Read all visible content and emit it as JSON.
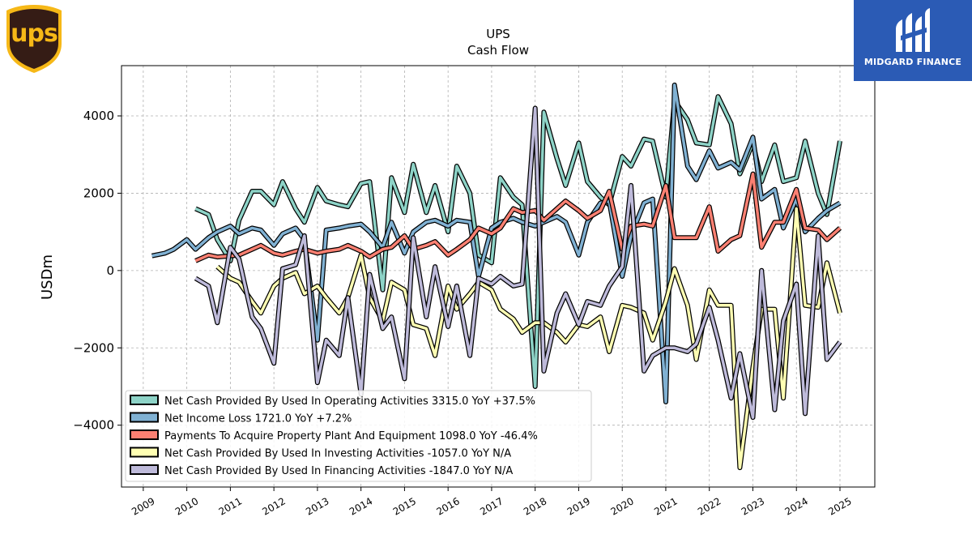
{
  "brand": {
    "logo_text": "ups",
    "partner": "MIDGARD FINANCE"
  },
  "colors": {
    "operating": "#8dd3c7",
    "net_income": "#80b1d3",
    "capex": "#fb8072",
    "investing": "#ffffb3",
    "financing": "#bebada"
  },
  "chart_data": {
    "type": "line",
    "title": "UPS",
    "subtitle": "Cash Flow",
    "ylabel": "USDm",
    "xlabel": "",
    "xlim": [
      2008.5,
      2025.8
    ],
    "ylim": [
      -5600,
      5300
    ],
    "yticks": [
      -4000,
      -2000,
      0,
      2000,
      4000
    ],
    "xticks": [
      "2009",
      "2010",
      "2011",
      "2012",
      "2013",
      "2014",
      "2015",
      "2016",
      "2017",
      "2018",
      "2019",
      "2020",
      "2021",
      "2022",
      "2023",
      "2024",
      "2025"
    ],
    "grid": true,
    "legend_position": "lower-left",
    "series": [
      {
        "key": "operating",
        "name": "Net Cash Provided By Used In Operating Activities  3315.0 YoY +37.5%",
        "x": [
          2010.2,
          2010.5,
          2010.7,
          2011.0,
          2011.2,
          2011.5,
          2011.7,
          2012.0,
          2012.2,
          2012.5,
          2012.7,
          2013.0,
          2013.2,
          2013.5,
          2013.7,
          2014.0,
          2014.2,
          2014.5,
          2014.7,
          2015.0,
          2015.2,
          2015.5,
          2015.7,
          2016.0,
          2016.2,
          2016.5,
          2016.7,
          2017.0,
          2017.2,
          2017.5,
          2017.7,
          2018.0,
          2018.2,
          2018.5,
          2018.7,
          2019.0,
          2019.2,
          2019.5,
          2019.7,
          2020.0,
          2020.2,
          2020.5,
          2020.7,
          2021.0,
          2021.2,
          2021.5,
          2021.7,
          2022.0,
          2022.2,
          2022.5,
          2022.7,
          2023.0,
          2023.2,
          2023.5,
          2023.7,
          2024.0,
          2024.2,
          2024.5,
          2024.7,
          2025.0
        ],
        "y": [
          1600,
          1450,
          800,
          250,
          1300,
          2050,
          2050,
          1700,
          2300,
          1600,
          1250,
          2150,
          1800,
          1700,
          1650,
          2250,
          2300,
          -500,
          2400,
          1500,
          2750,
          1500,
          2200,
          1000,
          2700,
          2000,
          400,
          200,
          2400,
          1900,
          1700,
          -3000,
          4100,
          2900,
          2200,
          3300,
          2300,
          1900,
          1700,
          2950,
          2700,
          3400,
          3350,
          1900,
          4400,
          3900,
          3300,
          3250,
          4500,
          3800,
          2500,
          3300,
          2300,
          3250,
          2300,
          2400,
          3350,
          2000,
          1450,
          3350
        ]
      },
      {
        "key": "net_income",
        "name": "Net Income Loss  1721.0 YoY +7.2%",
        "x": [
          2009.2,
          2009.5,
          2009.7,
          2010.0,
          2010.2,
          2010.5,
          2010.7,
          2011.0,
          2011.2,
          2011.5,
          2011.7,
          2012.0,
          2012.2,
          2012.5,
          2012.7,
          2013.0,
          2013.2,
          2013.5,
          2013.7,
          2014.0,
          2014.2,
          2014.5,
          2014.7,
          2015.0,
          2015.2,
          2015.5,
          2015.7,
          2016.0,
          2016.2,
          2016.5,
          2016.7,
          2017.0,
          2017.2,
          2017.5,
          2017.7,
          2018.0,
          2018.2,
          2018.5,
          2018.7,
          2019.0,
          2019.2,
          2019.5,
          2019.7,
          2020.0,
          2020.2,
          2020.5,
          2020.7,
          2021.0,
          2021.2,
          2021.5,
          2021.7,
          2022.0,
          2022.2,
          2022.5,
          2022.7,
          2023.0,
          2023.2,
          2023.5,
          2023.7,
          2024.0,
          2024.2,
          2024.5,
          2024.7,
          2025.0
        ],
        "y": [
          380,
          450,
          550,
          800,
          550,
          850,
          1000,
          1150,
          950,
          1100,
          1050,
          650,
          950,
          1100,
          800,
          -1800,
          1050,
          1100,
          1150,
          1200,
          1000,
          600,
          1250,
          450,
          1000,
          1250,
          1300,
          1150,
          1300,
          1250,
          -150,
          1100,
          1250,
          1350,
          1250,
          1150,
          1250,
          1400,
          1250,
          400,
          1250,
          1750,
          1800,
          -150,
          900,
          1750,
          1850,
          -3400,
          4800,
          2700,
          2350,
          3100,
          2650,
          2800,
          2600,
          3450,
          1850,
          2100,
          1100,
          1850,
          1000,
          1350,
          1550,
          1750
        ]
      },
      {
        "key": "capex",
        "name": "Payments To Acquire Property Plant And Equipment  1098.0 YoY -46.4%",
        "x": [
          2010.2,
          2010.5,
          2010.7,
          2011.0,
          2011.2,
          2011.5,
          2011.7,
          2012.0,
          2012.2,
          2012.5,
          2012.7,
          2013.0,
          2013.2,
          2013.5,
          2013.7,
          2014.0,
          2014.2,
          2014.5,
          2014.7,
          2015.0,
          2015.2,
          2015.5,
          2015.7,
          2016.0,
          2016.2,
          2016.5,
          2016.7,
          2017.0,
          2017.2,
          2017.5,
          2017.7,
          2018.0,
          2018.2,
          2018.5,
          2018.7,
          2019.0,
          2019.2,
          2019.5,
          2019.7,
          2020.0,
          2020.2,
          2020.5,
          2020.7,
          2021.0,
          2021.2,
          2021.5,
          2021.7,
          2022.0,
          2022.2,
          2022.5,
          2022.7,
          2023.0,
          2023.2,
          2023.5,
          2023.7,
          2024.0,
          2024.2,
          2024.5,
          2024.7,
          2025.0
        ],
        "y": [
          250,
          400,
          350,
          380,
          400,
          550,
          650,
          450,
          400,
          500,
          550,
          450,
          500,
          550,
          650,
          500,
          350,
          550,
          600,
          900,
          550,
          650,
          750,
          400,
          550,
          800,
          1100,
          950,
          1100,
          1600,
          1500,
          1550,
          1300,
          1600,
          1800,
          1550,
          1350,
          1550,
          2050,
          550,
          1150,
          1200,
          1150,
          2200,
          850,
          850,
          850,
          1650,
          500,
          800,
          900,
          2500,
          600,
          1250,
          1250,
          2100,
          1100,
          1050,
          800,
          1100
        ]
      },
      {
        "key": "investing",
        "name": "Net Cash Provided By Used In Investing Activities  -1057.0 YoY N/A",
        "x": [
          2010.7,
          2011.0,
          2011.2,
          2011.5,
          2011.7,
          2012.0,
          2012.2,
          2012.5,
          2012.7,
          2013.0,
          2013.2,
          2013.5,
          2013.7,
          2014.0,
          2014.2,
          2014.5,
          2014.7,
          2015.0,
          2015.2,
          2015.5,
          2015.7,
          2016.0,
          2016.2,
          2016.5,
          2016.7,
          2017.0,
          2017.2,
          2017.5,
          2017.7,
          2018.0,
          2018.2,
          2018.5,
          2018.7,
          2019.0,
          2019.2,
          2019.5,
          2019.7,
          2020.0,
          2020.2,
          2020.5,
          2020.7,
          2021.0,
          2021.2,
          2021.5,
          2021.7,
          2022.0,
          2022.2,
          2022.5,
          2022.7,
          2023.0,
          2023.2,
          2023.5,
          2023.7,
          2024.0,
          2024.2,
          2024.5,
          2024.7,
          2025.0
        ],
        "y": [
          100,
          -200,
          -300,
          -800,
          -1100,
          -400,
          -200,
          -50,
          -600,
          -400,
          -700,
          -1100,
          -700,
          400,
          -700,
          -1300,
          -300,
          -500,
          -1400,
          -1500,
          -2200,
          -400,
          -1000,
          -600,
          -300,
          -500,
          -1000,
          -1250,
          -1600,
          -1350,
          -1350,
          -1600,
          -1850,
          -1400,
          -1450,
          -1200,
          -2100,
          -900,
          -950,
          -1100,
          -1800,
          -800,
          50,
          -900,
          -2300,
          -500,
          -900,
          -900,
          -5100,
          -2500,
          -1000,
          -1000,
          -3300,
          1600,
          -900,
          -950,
          200,
          -1100
        ]
      },
      {
        "key": "financing",
        "name": "Net Cash Provided By Used In Financing Activities  -1847.0 YoY N/A",
        "x": [
          2010.2,
          2010.5,
          2010.7,
          2011.0,
          2011.2,
          2011.5,
          2011.7,
          2012.0,
          2012.2,
          2012.5,
          2012.7,
          2013.0,
          2013.2,
          2013.5,
          2013.7,
          2014.0,
          2014.2,
          2014.5,
          2014.7,
          2015.0,
          2015.2,
          2015.5,
          2015.7,
          2016.0,
          2016.2,
          2016.5,
          2016.7,
          2017.0,
          2017.2,
          2017.5,
          2017.7,
          2018.0,
          2018.2,
          2018.5,
          2018.7,
          2019.0,
          2019.2,
          2019.5,
          2019.7,
          2020.0,
          2020.2,
          2020.5,
          2020.7,
          2021.0,
          2021.2,
          2021.5,
          2021.7,
          2022.0,
          2022.2,
          2022.5,
          2022.7,
          2023.0,
          2023.2,
          2023.5,
          2023.7,
          2024.0,
          2024.2,
          2024.5,
          2024.7,
          2025.0
        ],
        "y": [
          -200,
          -400,
          -1350,
          600,
          300,
          -1200,
          -1500,
          -2400,
          50,
          150,
          900,
          -2900,
          -1800,
          -2200,
          -700,
          -3200,
          -100,
          -1500,
          -1200,
          -2800,
          850,
          -1200,
          100,
          -1450,
          -400,
          -2200,
          -200,
          -350,
          -150,
          -400,
          -350,
          4200,
          -2600,
          -1100,
          -600,
          -1400,
          -800,
          -900,
          -400,
          100,
          2200,
          -2600,
          -2200,
          -2000,
          -2000,
          -2100,
          -1900,
          -950,
          -1800,
          -3300,
          -2150,
          -3800,
          0,
          -3600,
          -1300,
          -350,
          -3700,
          900,
          -2300,
          -1850
        ]
      }
    ]
  }
}
